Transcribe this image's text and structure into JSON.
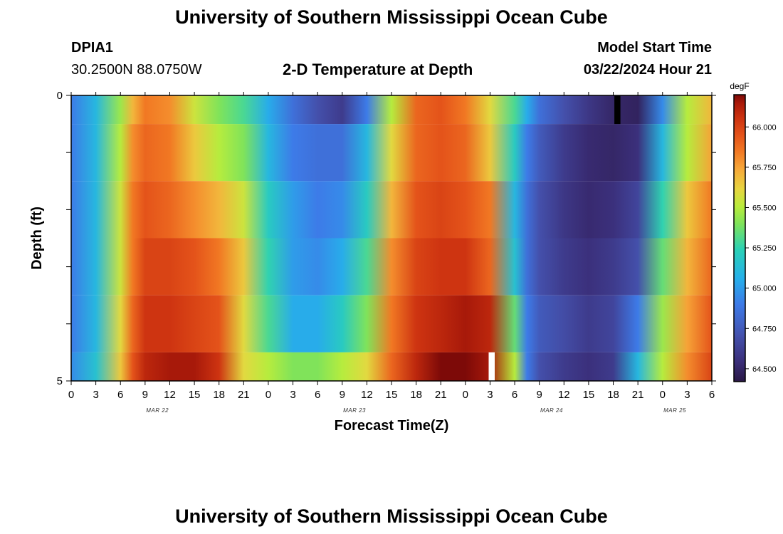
{
  "header": {
    "title": "University of Southern Mississippi Ocean Cube",
    "station_id": "DPIA1",
    "station_coords": "30.2500N  88.0750W",
    "plot_title": "2-D Temperature at Depth",
    "model_start_label": "Model Start Time",
    "model_start_value": "03/22/2024 Hour 21"
  },
  "footer": {
    "title": "University of Southern Mississippi Ocean Cube"
  },
  "chart_data": {
    "type": "heatmap",
    "title": "2-D Temperature at Depth",
    "xlabel": "Forecast Time(Z)",
    "ylabel": "Depth (ft)",
    "x_tick_labels": [
      "0",
      "3",
      "6",
      "9",
      "12",
      "15",
      "18",
      "21",
      "0",
      "3",
      "6",
      "9",
      "12",
      "15",
      "18",
      "21",
      "0",
      "3",
      "6",
      "9",
      "12",
      "15",
      "18",
      "21",
      "0",
      "3",
      "6"
    ],
    "x_date_labels": [
      "MAR 22",
      "MAR 23",
      "MAR 24",
      "MAR 25"
    ],
    "y_tick_labels": [
      "0",
      "5"
    ],
    "ylim": [
      0,
      5
    ],
    "colorbar": {
      "unit": "degF",
      "ticks": [
        "64.500",
        "64.750",
        "65.000",
        "65.250",
        "65.500",
        "65.750",
        "66.000"
      ],
      "range": [
        64.42,
        66.2
      ]
    },
    "depth_bands": [
      "0-0.5",
      "0.5-1.5",
      "1.5-2.5",
      "2.5-3.5",
      "3.5-4.5",
      "4.5-5"
    ],
    "time_nodes_hours": [
      0,
      3,
      6,
      7.5,
      9,
      12,
      15,
      18,
      21,
      24,
      27,
      30,
      33,
      36,
      39,
      42,
      45,
      48,
      51,
      54,
      55.5,
      57,
      60,
      63,
      66,
      69,
      72,
      75,
      78
    ],
    "temperature_degF": [
      [
        64.9,
        65.1,
        65.45,
        65.7,
        65.85,
        65.8,
        65.55,
        65.4,
        65.3,
        65.05,
        64.85,
        64.7,
        64.6,
        64.9,
        65.5,
        65.9,
        65.95,
        65.85,
        65.6,
        65.3,
        65.05,
        64.85,
        64.7,
        64.58,
        64.5,
        64.48,
        64.95,
        65.5,
        65.7
      ],
      [
        64.9,
        65.1,
        65.5,
        65.8,
        65.9,
        65.85,
        65.65,
        65.5,
        65.4,
        65.1,
        64.9,
        64.85,
        64.85,
        65.1,
        65.6,
        65.9,
        65.95,
        65.9,
        65.65,
        65.2,
        64.9,
        64.75,
        64.6,
        64.52,
        64.5,
        64.55,
        65.1,
        65.5,
        65.75
      ],
      [
        64.9,
        65.1,
        65.55,
        65.85,
        65.95,
        65.9,
        65.8,
        65.7,
        65.55,
        65.2,
        65.0,
        64.9,
        64.95,
        65.2,
        65.7,
        65.95,
        66.0,
        65.95,
        65.85,
        65.1,
        64.85,
        64.7,
        64.58,
        64.52,
        64.55,
        64.65,
        65.25,
        65.65,
        65.85
      ],
      [
        64.9,
        65.1,
        65.55,
        65.85,
        66.0,
        66.0,
        65.95,
        65.85,
        65.65,
        65.25,
        65.0,
        64.95,
        65.05,
        65.3,
        65.8,
        66.0,
        66.05,
        66.05,
        65.9,
        65.15,
        64.85,
        64.7,
        64.6,
        64.55,
        64.6,
        64.7,
        65.35,
        65.7,
        65.9
      ],
      [
        64.9,
        65.1,
        65.6,
        65.9,
        66.05,
        66.05,
        66.0,
        65.95,
        65.6,
        65.3,
        65.05,
        65.05,
        65.2,
        65.4,
        65.85,
        66.05,
        66.1,
        66.15,
        66.1,
        65.35,
        64.9,
        64.75,
        64.68,
        64.6,
        64.65,
        64.9,
        65.45,
        65.75,
        65.95
      ],
      [
        64.95,
        65.15,
        65.65,
        65.95,
        66.1,
        66.15,
        66.15,
        66.05,
        65.6,
        65.5,
        65.4,
        65.4,
        65.5,
        65.6,
        65.9,
        66.1,
        66.2,
        66.2,
        66.15,
        65.5,
        64.9,
        64.7,
        64.6,
        64.55,
        64.6,
        65.1,
        65.5,
        65.8,
        66.0
      ]
    ],
    "missing_data": [
      {
        "time_hours": 66.5,
        "depth_band": "0-0.5",
        "fill": "#000000"
      },
      {
        "time_hours": 51.2,
        "depth_band": "4.5-5",
        "fill": "#ffffff"
      }
    ],
    "grid": false,
    "legend_placement": "right"
  }
}
